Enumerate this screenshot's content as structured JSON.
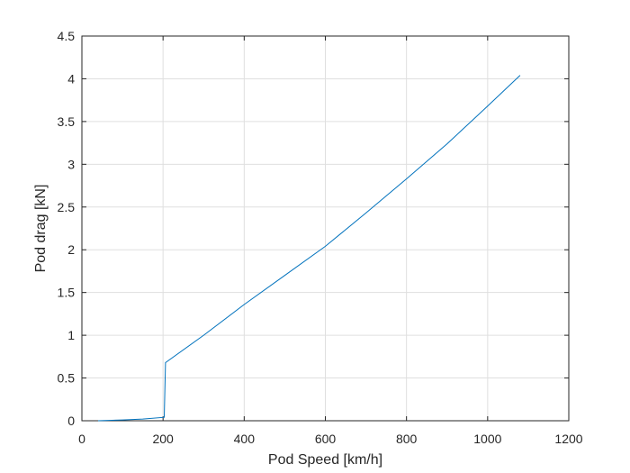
{
  "chart_data": {
    "type": "line",
    "title": "",
    "xlabel": "Pod Speed [km/h]",
    "ylabel": "Pod drag [kN]",
    "xlim": [
      0,
      1200
    ],
    "ylim": [
      0,
      4.5
    ],
    "xticks": [
      0,
      200,
      400,
      600,
      800,
      1000,
      1200
    ],
    "yticks": [
      0,
      0.5,
      1,
      1.5,
      2,
      2.5,
      3,
      3.5,
      4,
      4.5
    ],
    "xtick_labels": [
      "0",
      "200",
      "400",
      "600",
      "800",
      "1000",
      "1200"
    ],
    "ytick_labels": [
      "0",
      "0.5",
      "1",
      "1.5",
      "2",
      "2.5",
      "3",
      "3.5",
      "4",
      "4.5"
    ],
    "grid": true,
    "legend": null,
    "series": [
      {
        "name": "Pod drag",
        "color": "#0072BD",
        "x": [
          40,
          100,
          150,
          203,
          206,
          300,
          400,
          500,
          600,
          700,
          800,
          900,
          1000,
          1080
        ],
        "y": [
          0.0,
          0.01,
          0.02,
          0.04,
          0.68,
          1.0,
          1.36,
          1.7,
          2.04,
          2.43,
          2.83,
          3.24,
          3.68,
          4.04
        ]
      }
    ]
  },
  "colors": {
    "line": "#0072BD",
    "grid": "#dfdfdf",
    "axis": "#262626",
    "background": "#ffffff"
  }
}
